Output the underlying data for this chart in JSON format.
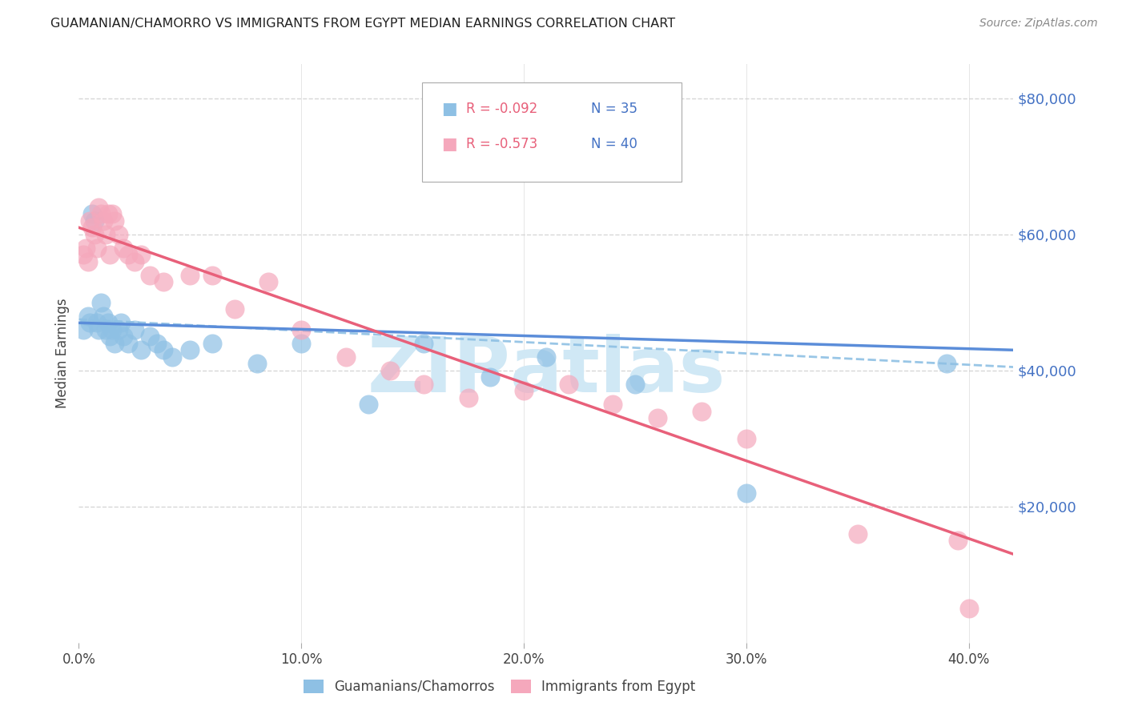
{
  "title": "GUAMANIAN/CHAMORRO VS IMMIGRANTS FROM EGYPT MEDIAN EARNINGS CORRELATION CHART",
  "source": "Source: ZipAtlas.com",
  "ylabel": "Median Earnings",
  "xlim": [
    0.0,
    0.42
  ],
  "ylim": [
    0,
    85000
  ],
  "xtick_labels": [
    "0.0%",
    "10.0%",
    "20.0%",
    "30.0%",
    "40.0%"
  ],
  "xtick_values": [
    0.0,
    0.1,
    0.2,
    0.3,
    0.4
  ],
  "ytick_labels": [
    "$20,000",
    "$40,000",
    "$60,000",
    "$80,000"
  ],
  "ytick_values": [
    20000,
    40000,
    60000,
    80000
  ],
  "legend_blue_r": "R = -0.092",
  "legend_blue_n": "N = 35",
  "legend_pink_r": "R = -0.573",
  "legend_pink_n": "N = 40",
  "label_blue": "Guamanians/Chamorros",
  "label_pink": "Immigrants from Egypt",
  "blue_color": "#8ec0e4",
  "pink_color": "#f5a8bc",
  "blue_line_color": "#5b8dd9",
  "pink_line_color": "#e8607a",
  "dashed_line_color": "#8ec0e4",
  "watermark_color": "#d0e8f5",
  "blue_scatter_x": [
    0.002,
    0.004,
    0.005,
    0.006,
    0.007,
    0.008,
    0.009,
    0.01,
    0.011,
    0.012,
    0.013,
    0.014,
    0.015,
    0.016,
    0.018,
    0.019,
    0.02,
    0.022,
    0.025,
    0.028,
    0.032,
    0.035,
    0.038,
    0.042,
    0.05,
    0.06,
    0.08,
    0.1,
    0.13,
    0.155,
    0.185,
    0.21,
    0.25,
    0.3,
    0.39
  ],
  "blue_scatter_y": [
    46000,
    48000,
    47000,
    63000,
    62000,
    47000,
    46000,
    50000,
    48000,
    46000,
    47000,
    45000,
    46000,
    44000,
    46000,
    47000,
    45000,
    44000,
    46000,
    43000,
    45000,
    44000,
    43000,
    42000,
    43000,
    44000,
    41000,
    44000,
    35000,
    44000,
    39000,
    42000,
    38000,
    22000,
    41000
  ],
  "pink_scatter_x": [
    0.002,
    0.003,
    0.004,
    0.005,
    0.006,
    0.007,
    0.008,
    0.009,
    0.01,
    0.011,
    0.012,
    0.013,
    0.014,
    0.015,
    0.016,
    0.018,
    0.02,
    0.022,
    0.025,
    0.028,
    0.032,
    0.038,
    0.05,
    0.06,
    0.07,
    0.085,
    0.1,
    0.12,
    0.14,
    0.155,
    0.175,
    0.2,
    0.22,
    0.24,
    0.26,
    0.28,
    0.3,
    0.35,
    0.395,
    0.4
  ],
  "pink_scatter_y": [
    57000,
    58000,
    56000,
    62000,
    61000,
    60000,
    58000,
    64000,
    63000,
    62000,
    60000,
    63000,
    57000,
    63000,
    62000,
    60000,
    58000,
    57000,
    56000,
    57000,
    54000,
    53000,
    54000,
    54000,
    49000,
    53000,
    46000,
    42000,
    40000,
    38000,
    36000,
    37000,
    38000,
    35000,
    33000,
    34000,
    30000,
    16000,
    15000,
    5000
  ],
  "blue_trendline_x": [
    0.0,
    0.42
  ],
  "blue_trendline_y": [
    47000,
    43000
  ],
  "pink_trendline_x": [
    0.0,
    0.42
  ],
  "pink_trendline_y": [
    61000,
    13000
  ],
  "dashed_line_x": [
    0.0,
    0.42
  ],
  "dashed_line_y": [
    47500,
    40500
  ],
  "background_color": "#ffffff",
  "grid_color": "#cccccc"
}
